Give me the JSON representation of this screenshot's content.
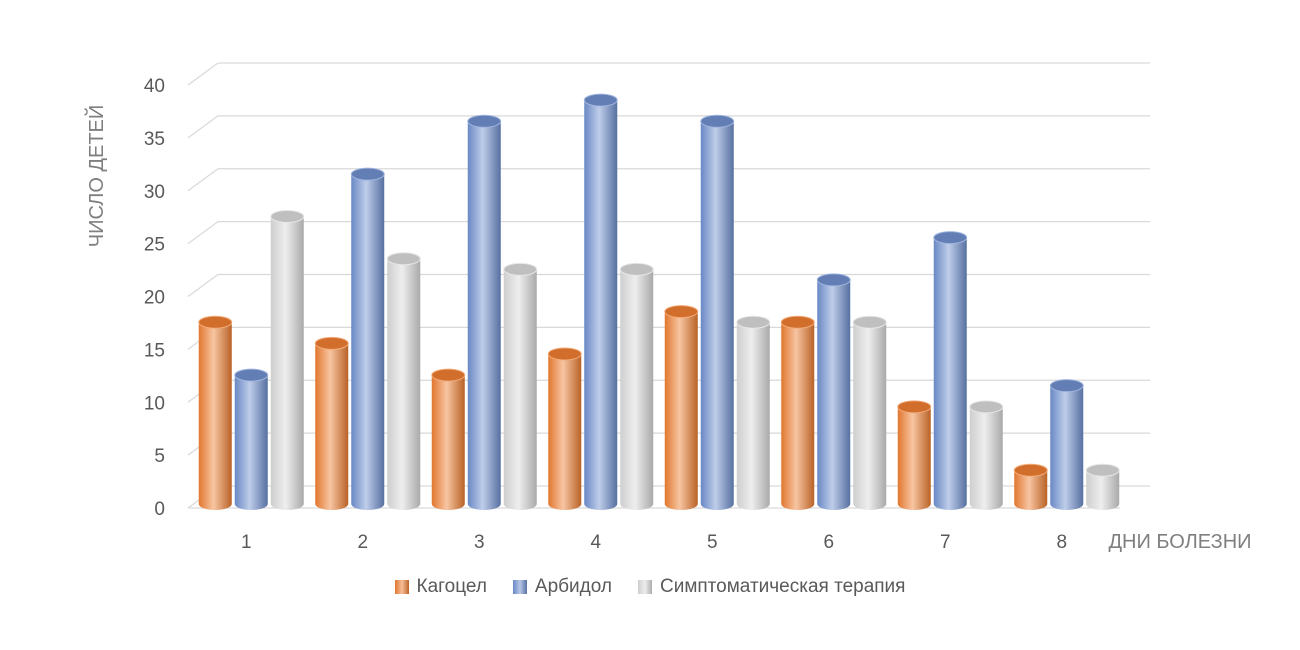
{
  "chart_data": {
    "type": "bar",
    "style": "3d-cylinder",
    "categories": [
      "1",
      "2",
      "3",
      "4",
      "5",
      "6",
      "7",
      "8"
    ],
    "series": [
      {
        "name": "Кагоцел",
        "color": "#ed7d31",
        "values": [
          17,
          15,
          12,
          14,
          18,
          17,
          9,
          3
        ]
      },
      {
        "name": "Арбидол",
        "color": "#6f8fce",
        "values": [
          12,
          31,
          36,
          38,
          36,
          21,
          25,
          11
        ]
      },
      {
        "name": "Симптоматическая терапия",
        "color": "#d9d9d9",
        "values": [
          27,
          23,
          22,
          22,
          17,
          17,
          9,
          3
        ]
      }
    ],
    "yticks": [
      "0",
      "5",
      "10",
      "15",
      "20",
      "25",
      "30",
      "35",
      "40"
    ],
    "ylim": [
      0,
      40
    ],
    "xlabel": "ДНИ БОЛЕЗНИ",
    "ylabel": "ЧИСЛО ДЕТЕЙ",
    "grid": true,
    "legend_position": "bottom"
  }
}
